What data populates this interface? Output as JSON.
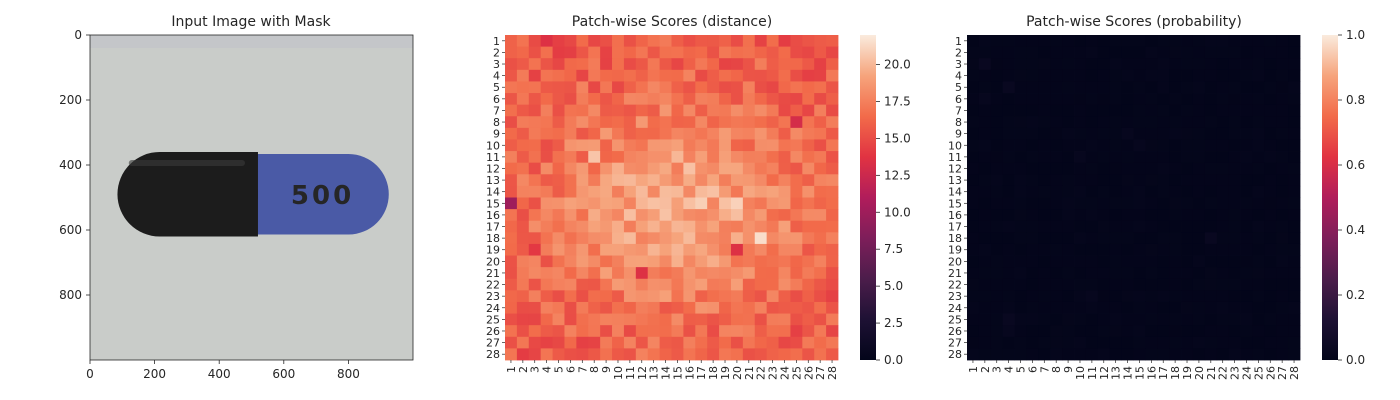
{
  "figure": {
    "panel_left": {
      "title": "Input Image with Mask",
      "x_ticks": [
        0,
        200,
        400,
        600,
        800
      ],
      "y_ticks": [
        0,
        200,
        400,
        600,
        800
      ],
      "x_range": [
        0,
        1000
      ],
      "y_range": [
        0,
        1000
      ],
      "image_content": {
        "background_color": "#c9ccc9",
        "capsule_left_color": "#1c1c1c",
        "capsule_right_color": "#4a5aa6",
        "capsule_text": "500",
        "capsule_text_color": "#a9b1d4"
      }
    },
    "panel_middle": {
      "title": "Patch-wise Scores (distance)",
      "colorbar_ticks": [
        "0.0",
        "2.5",
        "5.0",
        "7.5",
        "10.0",
        "12.5",
        "15.0",
        "17.5",
        "20.0"
      ]
    },
    "panel_right": {
      "title": "Patch-wise Scores (probability)",
      "colorbar_ticks": [
        "0.0",
        "0.2",
        "0.4",
        "0.6",
        "0.8",
        "1.0"
      ]
    }
  },
  "chart_data": [
    {
      "type": "image",
      "title": "Input Image with Mask",
      "xlim": [
        0,
        1000
      ],
      "ylim": [
        1000,
        0
      ],
      "x_ticks": [
        0,
        200,
        400,
        600,
        800
      ],
      "y_ticks": [
        0,
        200,
        400,
        600,
        800
      ]
    },
    {
      "type": "heatmap",
      "title": "Patch-wise Scores (distance)",
      "rows": 28,
      "cols": 28,
      "row_labels": [
        "1",
        "2",
        "3",
        "4",
        "5",
        "6",
        "7",
        "8",
        "9",
        "10",
        "11",
        "12",
        "13",
        "14",
        "15",
        "16",
        "17",
        "18",
        "19",
        "20",
        "21",
        "22",
        "23",
        "24",
        "25",
        "26",
        "27",
        "28"
      ],
      "col_labels": [
        "1",
        "2",
        "3",
        "4",
        "5",
        "6",
        "7",
        "8",
        "9",
        "10",
        "11",
        "12",
        "13",
        "14",
        "15",
        "16",
        "17",
        "18",
        "19",
        "20",
        "21",
        "22",
        "23",
        "24",
        "25",
        "26",
        "27",
        "28"
      ],
      "value_range": [
        0,
        22
      ],
      "colormap": "rocket",
      "value_model": {
        "edge_value": 15.5,
        "center_value": 19.5,
        "center_rows": [
          13,
          18
        ],
        "center_cols": [
          7,
          23
        ]
      },
      "notable_cells": [
        {
          "row": 15,
          "col": 1,
          "value": 10.0
        },
        {
          "row": 1,
          "col": 4,
          "value": 13.5
        },
        {
          "row": 8,
          "col": 25,
          "value": 13.0
        },
        {
          "row": 19,
          "col": 3,
          "value": 14.0
        },
        {
          "row": 19,
          "col": 20,
          "value": 13.5
        },
        {
          "row": 21,
          "col": 12,
          "value": 13.5
        },
        {
          "row": 18,
          "col": 22,
          "value": 21.5
        },
        {
          "row": 15,
          "col": 20,
          "value": 21.0
        },
        {
          "row": 11,
          "col": 8,
          "value": 20.5
        }
      ]
    },
    {
      "type": "heatmap",
      "title": "Patch-wise Scores (probability)",
      "rows": 28,
      "cols": 28,
      "row_labels": [
        "1",
        "2",
        "3",
        "4",
        "5",
        "6",
        "7",
        "8",
        "9",
        "10",
        "11",
        "12",
        "13",
        "14",
        "15",
        "16",
        "17",
        "18",
        "19",
        "20",
        "21",
        "22",
        "23",
        "24",
        "25",
        "26",
        "27",
        "28"
      ],
      "col_labels": [
        "1",
        "2",
        "3",
        "4",
        "5",
        "6",
        "7",
        "8",
        "9",
        "10",
        "11",
        "12",
        "13",
        "14",
        "15",
        "16",
        "17",
        "18",
        "19",
        "20",
        "21",
        "22",
        "23",
        "24",
        "25",
        "26",
        "27",
        "28"
      ],
      "value_range": [
        0,
        1
      ],
      "colormap": "rocket",
      "base_value": 0.0,
      "notable_cells": [
        {
          "row": 3,
          "col": 2,
          "value": 0.03
        },
        {
          "row": 5,
          "col": 4,
          "value": 0.03
        },
        {
          "row": 6,
          "col": 2,
          "value": 0.02
        },
        {
          "row": 9,
          "col": 14,
          "value": 0.02
        },
        {
          "row": 10,
          "col": 15,
          "value": 0.02
        },
        {
          "row": 11,
          "col": 10,
          "value": 0.02
        },
        {
          "row": 18,
          "col": 21,
          "value": 0.03
        },
        {
          "row": 23,
          "col": 11,
          "value": 0.02
        },
        {
          "row": 25,
          "col": 4,
          "value": 0.03
        },
        {
          "row": 26,
          "col": 4,
          "value": 0.02
        }
      ]
    }
  ]
}
